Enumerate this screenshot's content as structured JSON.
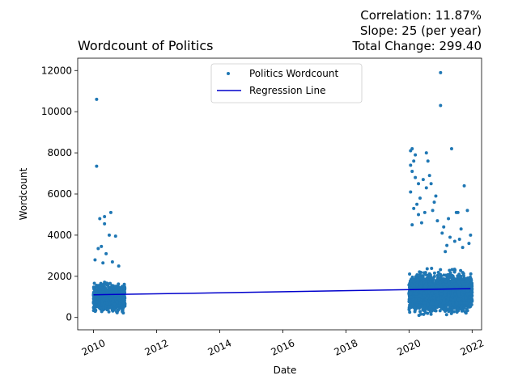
{
  "chart_data": {
    "type": "scatter",
    "title": "Wordcount of Politics",
    "stats_lines": [
      "Correlation: 11.87%",
      "Slope: 25 (per year)",
      "Total Change: 299.40"
    ],
    "xlabel": "Date",
    "ylabel": "Wordcount",
    "xlim": [
      2009.5,
      2022.3
    ],
    "ylim": [
      -600,
      12600
    ],
    "xticks": [
      2010,
      2012,
      2014,
      2016,
      2018,
      2020,
      2022
    ],
    "yticks": [
      0,
      2000,
      4000,
      6000,
      8000,
      10000,
      12000
    ],
    "legend_placement": "top-center",
    "colors": {
      "points": "#1f77b4",
      "regression": "#0000cc"
    },
    "series": [
      {
        "name": "Politics Wordcount",
        "kind": "points",
        "clusters": [
          {
            "x_range": [
              2010.0,
              2011.0
            ],
            "y_dense_range": [
              200,
              2000
            ],
            "count": 900
          },
          {
            "x_range": [
              2020.0,
              2022.0
            ],
            "y_dense_range": [
              100,
              2600
            ],
            "count": 2400
          }
        ],
        "outliers": [
          [
            2010.1,
            10600
          ],
          [
            2010.1,
            7350
          ],
          [
            2010.2,
            4800
          ],
          [
            2010.35,
            4900
          ],
          [
            2010.35,
            4550
          ],
          [
            2010.55,
            5100
          ],
          [
            2010.5,
            4000
          ],
          [
            2010.7,
            3950
          ],
          [
            2010.15,
            3350
          ],
          [
            2010.25,
            3450
          ],
          [
            2010.4,
            3100
          ],
          [
            2010.05,
            2800
          ],
          [
            2010.6,
            2700
          ],
          [
            2010.8,
            2500
          ],
          [
            2010.3,
            2650
          ],
          [
            2020.05,
            8100
          ],
          [
            2020.1,
            8200
          ],
          [
            2020.15,
            7600
          ],
          [
            2020.2,
            7900
          ],
          [
            2020.05,
            7400
          ],
          [
            2020.1,
            7100
          ],
          [
            2020.2,
            6800
          ],
          [
            2020.3,
            6500
          ],
          [
            2020.05,
            6100
          ],
          [
            2020.35,
            5800
          ],
          [
            2020.45,
            6700
          ],
          [
            2020.55,
            8000
          ],
          [
            2020.6,
            7600
          ],
          [
            2020.65,
            6900
          ],
          [
            2020.55,
            6300
          ],
          [
            2020.7,
            6500
          ],
          [
            2020.75,
            5200
          ],
          [
            2020.85,
            5900
          ],
          [
            2020.9,
            4700
          ],
          [
            2020.25,
            5500
          ],
          [
            2020.15,
            5300
          ],
          [
            2020.3,
            5000
          ],
          [
            2020.4,
            4600
          ],
          [
            2020.1,
            4500
          ],
          [
            2020.5,
            5100
          ],
          [
            2020.8,
            5600
          ],
          [
            2021.0,
            11900
          ],
          [
            2021.0,
            10300
          ],
          [
            2021.1,
            4400
          ],
          [
            2021.25,
            4800
          ],
          [
            2021.35,
            8200
          ],
          [
            2021.5,
            5100
          ],
          [
            2021.55,
            5100
          ],
          [
            2021.65,
            4300
          ],
          [
            2021.75,
            6400
          ],
          [
            2021.85,
            5200
          ],
          [
            2021.95,
            4000
          ],
          [
            2021.3,
            3900
          ],
          [
            2021.45,
            3700
          ],
          [
            2021.6,
            3800
          ],
          [
            2021.2,
            3500
          ],
          [
            2021.7,
            3400
          ],
          [
            2021.9,
            3600
          ],
          [
            2021.05,
            4100
          ],
          [
            2021.15,
            3200
          ]
        ]
      },
      {
        "name": "Regression Line",
        "kind": "line",
        "x": [
          2010.0,
          2021.95
        ],
        "y": [
          1100,
          1400
        ]
      }
    ]
  }
}
